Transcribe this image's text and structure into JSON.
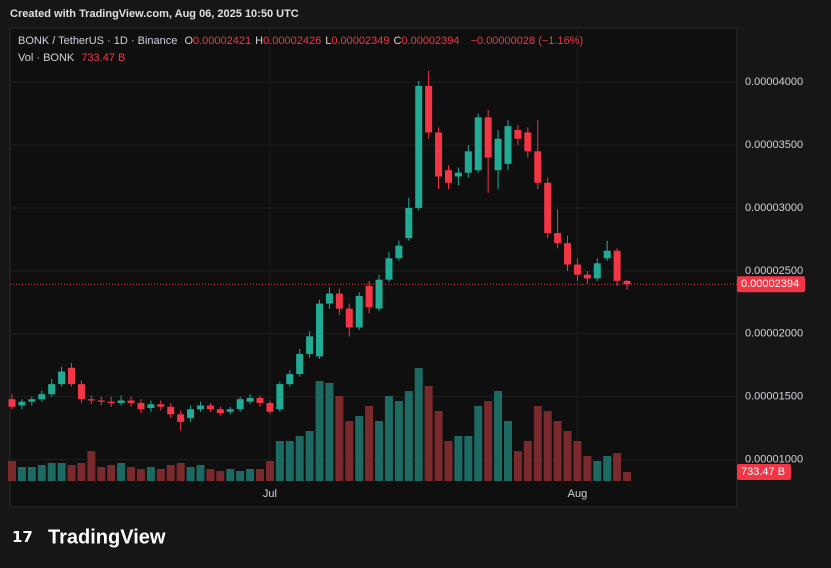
{
  "header": {
    "created": "Created with TradingView.com, Aug 06, 2025 10:50 UTC",
    "symbol": "BONK / TetherUS · 1D · Binance",
    "ohlc": [
      {
        "key": "O",
        "value": "0.00002421"
      },
      {
        "key": "H",
        "value": "0.00002426"
      },
      {
        "key": "L",
        "value": "0.00002349"
      },
      {
        "key": "C",
        "value": "0.00002394"
      }
    ],
    "change": "−0.00000028 (−1.16%)",
    "volume_name": "Vol · BONK",
    "volume_label": "733.47 B"
  },
  "brand": "TradingView",
  "chart_data": {
    "type": "candlestick",
    "grid": true,
    "categories": [
      null,
      null,
      null,
      null,
      null,
      null,
      null,
      null,
      null,
      null,
      null,
      null,
      null,
      null,
      null,
      null,
      null,
      null,
      null,
      null,
      null,
      null,
      null,
      null,
      null,
      null,
      "Jul",
      null,
      null,
      null,
      null,
      null,
      null,
      null,
      null,
      null,
      null,
      null,
      null,
      null,
      null,
      null,
      null,
      null,
      null,
      null,
      null,
      null,
      null,
      null,
      null,
      null,
      null,
      null,
      null,
      null,
      null,
      "Aug",
      null,
      null,
      null,
      null,
      null
    ],
    "series": [
      {
        "up_color": "#22ab94",
        "down_color": "#f23645",
        "open": [
          1.48e-05,
          1.43e-05,
          1.46e-05,
          1.48e-05,
          1.52e-05,
          1.6e-05,
          1.73e-05,
          1.6e-05,
          1.48e-05,
          1.47e-05,
          1.46e-05,
          1.45e-05,
          1.47e-05,
          1.45e-05,
          1.41e-05,
          1.44e-05,
          1.42e-05,
          1.36e-05,
          1.33e-05,
          1.4e-05,
          1.43e-05,
          1.4e-05,
          1.38e-05,
          1.4e-05,
          1.46e-05,
          1.49e-05,
          1.45e-05,
          1.4e-05,
          1.6e-05,
          1.68e-05,
          1.84e-05,
          1.82e-05,
          2.24e-05,
          2.32e-05,
          2.2e-05,
          2.05e-05,
          2.38e-05,
          2.2e-05,
          2.43e-05,
          2.6e-05,
          2.76e-05,
          3e-05,
          3.97e-05,
          3.6e-05,
          3.3e-05,
          3.25e-05,
          3.28e-05,
          3.3e-05,
          3.72e-05,
          3.3e-05,
          3.35e-05,
          3.62e-05,
          3.6e-05,
          3.45e-05,
          3.2e-05,
          2.8e-05,
          2.72e-05,
          2.55e-05,
          2.47e-05,
          2.44e-05,
          2.6e-05,
          2.66e-05,
          2.421e-05
        ],
        "high": [
          1.52e-05,
          1.48e-05,
          1.5e-05,
          1.55e-05,
          1.64e-05,
          1.74e-05,
          1.77e-05,
          1.63e-05,
          1.51e-05,
          1.5e-05,
          1.5e-05,
          1.51e-05,
          1.5e-05,
          1.48e-05,
          1.47e-05,
          1.47e-05,
          1.45e-05,
          1.39e-05,
          1.43e-05,
          1.46e-05,
          1.45e-05,
          1.42e-05,
          1.42e-05,
          1.5e-05,
          1.52e-05,
          1.51e-05,
          1.47e-05,
          1.62e-05,
          1.71e-05,
          1.88e-05,
          2.02e-05,
          2.27e-05,
          2.37e-05,
          2.36e-05,
          2.24e-05,
          2.33e-05,
          2.42e-05,
          2.47e-05,
          2.65e-05,
          2.74e-05,
          3.08e-05,
          4.01e-05,
          4.09e-05,
          3.64e-05,
          3.34e-05,
          3.32e-05,
          3.5e-05,
          3.75e-05,
          3.78e-05,
          3.62e-05,
          3.7e-05,
          3.66e-05,
          3.64e-05,
          3.7e-05,
          3.24e-05,
          2.99e-05,
          2.78e-05,
          2.6e-05,
          2.5e-05,
          2.6e-05,
          2.74e-05,
          2.68e-05,
          2.426e-05
        ],
        "low": [
          1.4e-05,
          1.4e-05,
          1.43e-05,
          1.46e-05,
          1.5e-05,
          1.58e-05,
          1.58e-05,
          1.45e-05,
          1.44e-05,
          1.43e-05,
          1.42e-05,
          1.43e-05,
          1.42e-05,
          1.37e-05,
          1.38e-05,
          1.39e-05,
          1.33e-05,
          1.23e-05,
          1.3e-05,
          1.38e-05,
          1.38e-05,
          1.35e-05,
          1.36e-05,
          1.38e-05,
          1.44e-05,
          1.42e-05,
          1.36e-05,
          1.38e-05,
          1.58e-05,
          1.66e-05,
          1.81e-05,
          1.8e-05,
          2.2e-05,
          2.15e-05,
          1.98e-05,
          2.03e-05,
          2.16e-05,
          2.18e-05,
          2.41e-05,
          2.58e-05,
          2.74e-05,
          2.98e-05,
          3.55e-05,
          3.15e-05,
          3.15e-05,
          3.18e-05,
          3.24e-05,
          3.28e-05,
          3.12e-05,
          3.15e-05,
          3.3e-05,
          3.5e-05,
          3.4e-05,
          3.15e-05,
          2.76e-05,
          2.68e-05,
          2.5e-05,
          2.42e-05,
          2.4e-05,
          2.42e-05,
          2.58e-05,
          2.38e-05,
          2.349e-05
        ],
        "close": [
          1.42e-05,
          1.46e-05,
          1.48e-05,
          1.52e-05,
          1.6e-05,
          1.7e-05,
          1.6e-05,
          1.48e-05,
          1.47e-05,
          1.46e-05,
          1.45e-05,
          1.47e-05,
          1.45e-05,
          1.4e-05,
          1.44e-05,
          1.42e-05,
          1.36e-05,
          1.3e-05,
          1.4e-05,
          1.43e-05,
          1.4e-05,
          1.37e-05,
          1.4e-05,
          1.48e-05,
          1.49e-05,
          1.45e-05,
          1.38e-05,
          1.6e-05,
          1.68e-05,
          1.84e-05,
          1.98e-05,
          2.24e-05,
          2.32e-05,
          2.2e-05,
          2.05e-05,
          2.3e-05,
          2.21e-05,
          2.43e-05,
          2.6e-05,
          2.7e-05,
          3e-05,
          3.97e-05,
          3.6e-05,
          3.25e-05,
          3.2e-05,
          3.28e-05,
          3.45e-05,
          3.72e-05,
          3.4e-05,
          3.55e-05,
          3.65e-05,
          3.55e-05,
          3.45e-05,
          3.2e-05,
          2.8e-05,
          2.72e-05,
          2.55e-05,
          2.47e-05,
          2.44e-05,
          2.56e-05,
          2.66e-05,
          2.421e-05,
          2.394e-05
        ]
      },
      {
        "type": "volume",
        "axis": "y2",
        "up_color": "#1c6a62",
        "down_color": "#7a2a2d",
        "values": [
          1630,
          1141,
          1141,
          1304,
          1467,
          1467,
          1304,
          1467,
          2445,
          1141,
          1304,
          1467,
          1141,
          978,
          1141,
          978,
          1304,
          1467,
          1141,
          1304,
          978,
          815,
          978,
          815,
          978,
          978,
          1630,
          3260,
          3260,
          3668,
          4075,
          8150,
          7987,
          6928,
          4890,
          5298,
          6113,
          4890,
          6928,
          6520,
          7335,
          9210,
          7743,
          5705,
          3260,
          3668,
          3668,
          6113,
          6520,
          7335,
          4890,
          2445,
          3260,
          6113,
          5705,
          4890,
          4075,
          3260,
          2038,
          1630,
          2038,
          2282,
          733.47
        ]
      }
    ],
    "ylim": [
      8.3e-06,
      4.43e-05
    ],
    "yticks": [
      {
        "value": 1e-05,
        "label": "0.00001000"
      },
      {
        "value": 1.5e-05,
        "label": "0.00001500"
      },
      {
        "value": 2e-05,
        "label": "0.00002000"
      },
      {
        "value": 2.5e-05,
        "label": "0.00002500"
      },
      {
        "value": 3e-05,
        "label": "0.00003000"
      },
      {
        "value": 3.5e-05,
        "label": "0.00003500"
      },
      {
        "value": 4e-05,
        "label": "0.00004000"
      }
    ],
    "y2lim": [
      0,
      36920
    ],
    "last_price_label": "0.00002394"
  }
}
